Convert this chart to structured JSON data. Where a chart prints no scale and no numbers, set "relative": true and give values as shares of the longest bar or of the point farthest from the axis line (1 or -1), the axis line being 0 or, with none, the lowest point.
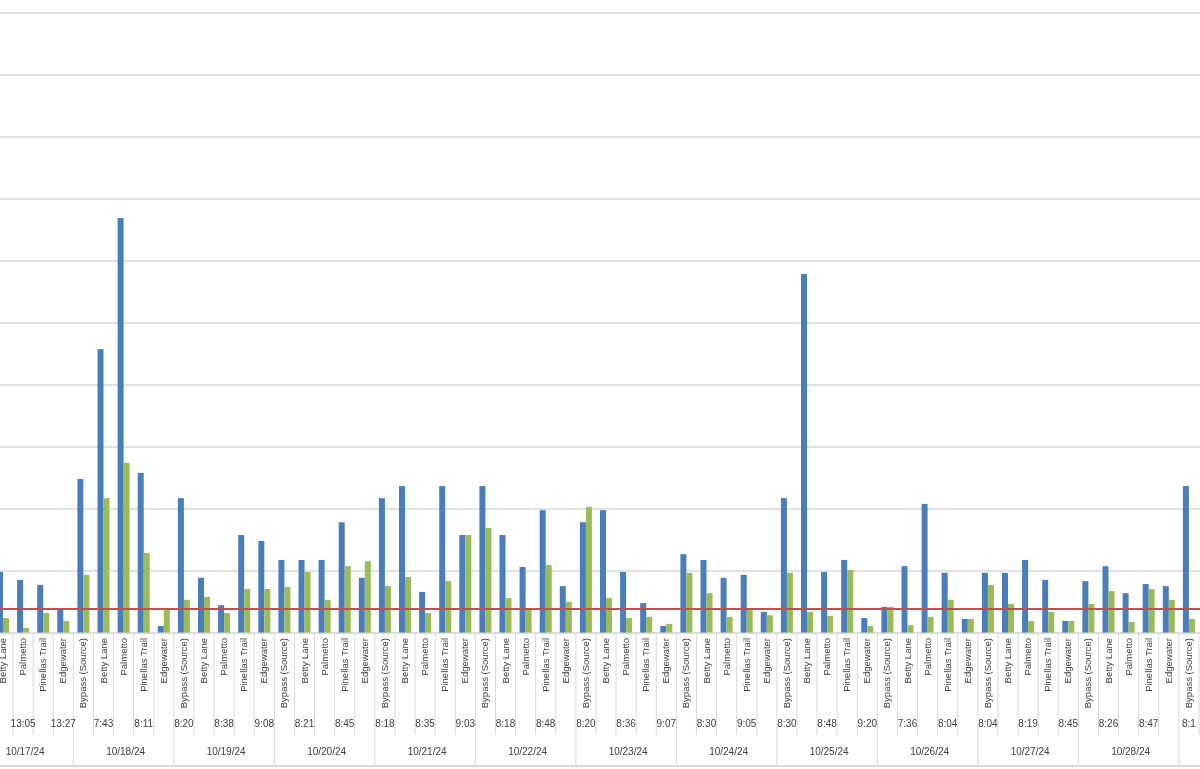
{
  "chart_data": {
    "type": "bar",
    "relative": true,
    "grid": "y",
    "categories": [
      "Betty Lane",
      "Palmetto",
      "Pinellas Trail",
      "Edgewater",
      "Bypass (Source)",
      "Betty Lane",
      "Palmetto",
      "Pinellas Trail",
      "Edgewater",
      "Bypass (Source)",
      "Betty Lane",
      "Palmetto",
      "Pinellas Trail",
      "Edgewater",
      "Bypass (Source)",
      "Betty Lane",
      "Palmetto",
      "Pinellas Trail",
      "Edgewater",
      "Bypass (Source)",
      "Betty Lane",
      "Palmetto",
      "Pinellas Trail",
      "Edgewater",
      "Bypass (Source)",
      "Betty Lane",
      "Palmetto",
      "Pinellas Trail",
      "Edgewater",
      "Bypass (Source)",
      "Betty Lane",
      "Palmetto",
      "Pinellas Trail",
      "Edgewater",
      "Bypass (Source)",
      "Betty Lane",
      "Palmetto",
      "Pinellas Trail",
      "Edgewater",
      "Bypass (Source)",
      "Betty Lane",
      "Palmetto",
      "Pinellas Trail",
      "Edgewater",
      "Bypass (Source)",
      "Betty Lane",
      "Palmetto",
      "Pinellas Trail",
      "Edgewater",
      "Bypass (Source)",
      "Betty Lane",
      "Palmetto",
      "Pinellas Trail",
      "Edgewater",
      "Bypass (Source)",
      "Betty Lane",
      "Palmetto",
      "Pinellas Trail",
      "Edgewater",
      "Bypass (Source)"
    ],
    "series": [
      {
        "color": "#4a7ebb",
        "values": [
          0.147,
          0.128,
          0.116,
          0.058,
          0.371,
          0.684,
          1,
          0.386,
          0.017,
          0.325,
          0.133,
          0.067,
          0.236,
          0.222,
          0.176,
          0.176,
          0.176,
          0.267,
          0.133,
          0.325,
          0.354,
          0.099,
          0.354,
          0.236,
          0.354,
          0.236,
          0.159,
          0.296,
          0.113,
          0.267,
          0.296,
          0.147,
          0.072,
          0.017,
          0.19,
          0.176,
          0.133,
          0.14,
          0.051,
          0.325,
          0.865,
          0.147,
          0.176,
          0.036,
          0.063,
          0.161,
          0.311,
          0.145,
          0.034,
          0.145,
          0.145,
          0.176,
          0.128,
          0.029,
          0.125,
          0.161,
          0.096,
          0.118,
          0.113,
          0.354
        ]
      },
      {
        "color": "#9bbb59",
        "values": [
          0.036,
          0.012,
          0.048,
          0.029,
          0.14,
          0.325,
          0.41,
          0.193,
          0.058,
          0.08,
          0.087,
          0.048,
          0.106,
          0.106,
          0.111,
          0.147,
          0.08,
          0.161,
          0.173,
          0.113,
          0.135,
          0.048,
          0.125,
          0.236,
          0.253,
          0.084,
          0.058,
          0.164,
          0.075,
          0.304,
          0.084,
          0.036,
          0.039,
          0.022,
          0.145,
          0.096,
          0.039,
          0.058,
          0.043,
          0.145,
          0.051,
          0.041,
          0.152,
          0.017,
          0.063,
          0.019,
          0.039,
          0.08,
          0.034,
          0.116,
          0.07,
          0.029,
          0.051,
          0.029,
          0.07,
          0.101,
          0.027,
          0.106,
          0.08,
          0.034
        ]
      }
    ],
    "ref_lines": [
      {
        "axis": "y",
        "value": 0.058,
        "color": "#c0504d"
      }
    ],
    "annotations": [
      "13:05",
      "13:27",
      "7:43",
      "8:11",
      "8:20",
      "8:38",
      "9:08",
      "8:21",
      "8:45",
      "8:18",
      "8:35",
      "9:03",
      "8:18",
      "8:48",
      "8:20",
      "8:36",
      "9:07",
      "8:30",
      "9:05",
      "8:30",
      "8:48",
      "9:20",
      "7:36",
      "8:04",
      "8:04",
      "8:19",
      "8:45",
      "8:26",
      "8:47",
      "8:1",
      "10/17/24",
      "10/18/24",
      "10/19/24",
      "10/20/24",
      "10/21/24",
      "10/22/24",
      "10/23/24",
      "10/24/24",
      "10/25/24",
      "10/26/24",
      "10/27/24",
      "10/28/24"
    ]
  }
}
